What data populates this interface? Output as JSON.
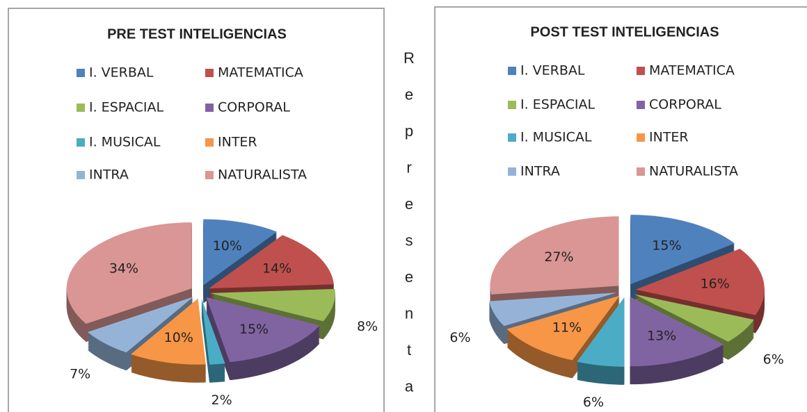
{
  "chart_data": [
    {
      "type": "pie",
      "title": "PRE TEST INTELIGENCIAS",
      "categories": [
        "I. VERBAL",
        "MATEMATICA",
        "I. ESPACIAL",
        "CORPORAL",
        "I. MUSICAL",
        "INTER",
        "INTRA",
        "NATURALISTA"
      ],
      "values": [
        10,
        14,
        8,
        15,
        2,
        10,
        7,
        34
      ],
      "value_labels": [
        "10%",
        "14%",
        "8%",
        "15%",
        "2%",
        "10%",
        "7%",
        "34%"
      ],
      "colors": [
        "#4f81bd",
        "#c0504d",
        "#9bbb59",
        "#8064a2",
        "#4bacc6",
        "#f79646",
        "#95b3d7",
        "#d99694"
      ],
      "legend": "top"
    },
    {
      "type": "pie",
      "title": "POST TEST INTELIGENCIAS",
      "categories": [
        "I. VERBAL",
        "MATEMATICA",
        "I. ESPACIAL",
        "CORPORAL",
        "I. MUSICAL",
        "INTER",
        "INTRA",
        "NATURALISTA"
      ],
      "values": [
        15,
        16,
        6,
        13,
        6,
        11,
        6,
        27
      ],
      "value_labels": [
        "15%",
        "16%",
        "6%",
        "13%",
        "6%",
        "11%",
        "6%",
        "27%"
      ],
      "colors": [
        "#4f81bd",
        "#c0504d",
        "#9bbb59",
        "#8064a2",
        "#4bacc6",
        "#f79646",
        "#95b3d7",
        "#d99694"
      ],
      "legend": "top"
    }
  ],
  "side_text": [
    "R",
    "e",
    "p",
    "r",
    "e",
    "s",
    "e",
    "n",
    "t",
    "a"
  ]
}
